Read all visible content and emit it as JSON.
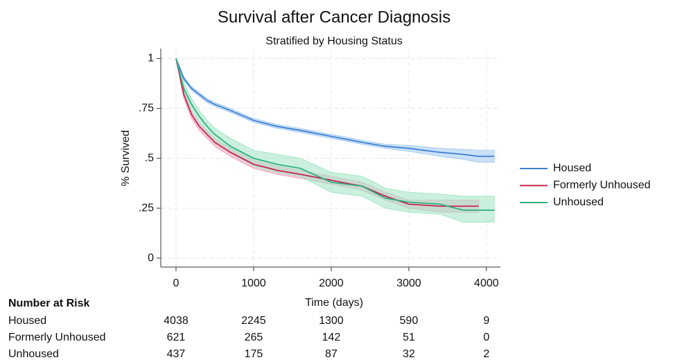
{
  "chart_data": {
    "type": "survival",
    "title": "Survival after Cancer Diagnosis",
    "subtitle": "Stratified by Housing Status",
    "x_label": "Time (days)",
    "y_label": "% Survived",
    "x": [
      0,
      100,
      200,
      300,
      400,
      500,
      700,
      1000,
      1300,
      1600,
      2000,
      2400,
      2700,
      3000,
      3400,
      3700,
      3900,
      4100
    ],
    "series": [
      {
        "name": "Housed",
        "color": "#3a7fd5",
        "band_color": "#a9cdf0",
        "values": [
          1,
          0.9,
          0.85,
          0.82,
          0.79,
          0.77,
          0.74,
          0.69,
          0.66,
          0.64,
          0.61,
          0.58,
          0.56,
          0.55,
          0.53,
          0.52,
          0.51,
          0.51
        ],
        "lower": [
          1,
          0.89,
          0.84,
          0.81,
          0.78,
          0.76,
          0.73,
          0.68,
          0.65,
          0.63,
          0.6,
          0.57,
          0.55,
          0.535,
          0.51,
          0.495,
          0.48,
          0.48
        ],
        "upper": [
          1,
          0.91,
          0.86,
          0.83,
          0.8,
          0.78,
          0.75,
          0.7,
          0.67,
          0.65,
          0.62,
          0.59,
          0.57,
          0.565,
          0.55,
          0.545,
          0.54,
          0.54
        ]
      },
      {
        "name": "Formerly Unhoused",
        "color": "#c8234f",
        "band_color": "#f0a5c0",
        "values": [
          1,
          0.82,
          0.72,
          0.66,
          0.62,
          0.58,
          0.53,
          0.47,
          0.44,
          0.42,
          0.39,
          0.36,
          0.31,
          0.27,
          0.26,
          0.26,
          0.26,
          null
        ],
        "lower": [
          1,
          0.8,
          0.7,
          0.64,
          0.6,
          0.56,
          0.51,
          0.45,
          0.42,
          0.4,
          0.37,
          0.34,
          0.29,
          0.25,
          0.23,
          0.23,
          0.23,
          null
        ],
        "upper": [
          1,
          0.84,
          0.74,
          0.68,
          0.64,
          0.6,
          0.55,
          0.49,
          0.46,
          0.44,
          0.41,
          0.38,
          0.33,
          0.29,
          0.29,
          0.29,
          0.29,
          null
        ]
      },
      {
        "name": "Unhoused",
        "color": "#2cb27a",
        "band_color": "#a8e6c8",
        "values": [
          1,
          0.85,
          0.77,
          0.71,
          0.66,
          0.62,
          0.56,
          0.5,
          0.47,
          0.45,
          0.38,
          0.36,
          0.3,
          0.28,
          0.27,
          0.24,
          0.24,
          0.24
        ],
        "lower": [
          1,
          0.82,
          0.74,
          0.68,
          0.63,
          0.59,
          0.53,
          0.46,
          0.43,
          0.41,
          0.33,
          0.31,
          0.25,
          0.23,
          0.22,
          0.18,
          0.18,
          0.18
        ],
        "upper": [
          1,
          0.88,
          0.8,
          0.74,
          0.69,
          0.65,
          0.6,
          0.54,
          0.52,
          0.5,
          0.43,
          0.41,
          0.35,
          0.33,
          0.32,
          0.31,
          0.31,
          0.31
        ]
      }
    ],
    "xlim": [
      -196,
      4180
    ],
    "ylim": [
      -0.045,
      1.05
    ],
    "xticks": [
      0,
      1000,
      2000,
      3000,
      4000
    ],
    "yticks": [
      0,
      {
        "value": 0.25,
        "label": ".25"
      },
      {
        "value": 0.5,
        "label": ".5"
      },
      {
        "value": 0.75,
        "label": ".75"
      },
      1
    ],
    "grid": true,
    "legend": "right",
    "risk_table": {
      "title": "Number at Risk",
      "rows": [
        {
          "label": "Housed",
          "values": [
            4038,
            2245,
            1300,
            590,
            9
          ]
        },
        {
          "label": "Formerly Unhoused",
          "values": [
            621,
            265,
            142,
            51,
            0
          ]
        },
        {
          "label": "Unhoused",
          "values": [
            437,
            175,
            87,
            32,
            2
          ]
        }
      ]
    }
  }
}
